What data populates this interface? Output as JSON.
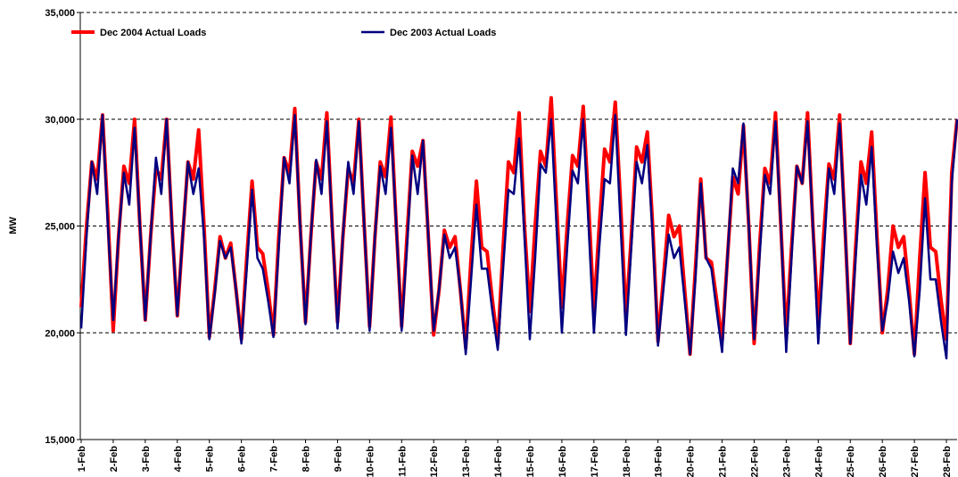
{
  "chart_data": {
    "type": "line",
    "y_label": "MW",
    "xlim": [
      0,
      656
    ],
    "ylim": [
      15000,
      35000
    ],
    "yticks": [
      {
        "value": 15000,
        "label": "15,000"
      },
      {
        "value": 20000,
        "label": "20,000"
      },
      {
        "value": 25000,
        "label": "25,000"
      },
      {
        "value": 30000,
        "label": "30,000"
      },
      {
        "value": 35000,
        "label": "35,000"
      }
    ],
    "xticks": [
      {
        "value": 0,
        "label": "1-Feb"
      },
      {
        "value": 24,
        "label": "2-Feb"
      },
      {
        "value": 48,
        "label": "3-Feb"
      },
      {
        "value": 72,
        "label": "4-Feb"
      },
      {
        "value": 96,
        "label": "5-Feb"
      },
      {
        "value": 120,
        "label": "6-Feb"
      },
      {
        "value": 144,
        "label": "7-Feb"
      },
      {
        "value": 168,
        "label": "8-Feb"
      },
      {
        "value": 192,
        "label": "9-Feb"
      },
      {
        "value": 216,
        "label": "10-Feb"
      },
      {
        "value": 240,
        "label": "11-Feb"
      },
      {
        "value": 264,
        "label": "12-Feb"
      },
      {
        "value": 288,
        "label": "13-Feb"
      },
      {
        "value": 312,
        "label": "14-Feb"
      },
      {
        "value": 336,
        "label": "15-Feb"
      },
      {
        "value": 360,
        "label": "16-Feb"
      },
      {
        "value": 384,
        "label": "17-Feb"
      },
      {
        "value": 408,
        "label": "18-Feb"
      },
      {
        "value": 432,
        "label": "19-Feb"
      },
      {
        "value": 456,
        "label": "20-Feb"
      },
      {
        "value": 480,
        "label": "21-Feb"
      },
      {
        "value": 504,
        "label": "22-Feb"
      },
      {
        "value": 528,
        "label": "23-Feb"
      },
      {
        "value": 552,
        "label": "24-Feb"
      },
      {
        "value": 576,
        "label": "25-Feb"
      },
      {
        "value": 600,
        "label": "26-Feb"
      },
      {
        "value": 624,
        "label": "27-Feb"
      },
      {
        "value": 648,
        "label": "28-Feb"
      }
    ],
    "grid": true,
    "x": [
      0,
      4,
      8,
      12,
      16,
      20,
      24,
      28,
      32,
      36,
      40,
      44,
      48,
      52,
      56,
      60,
      64,
      68,
      72,
      76,
      80,
      84,
      88,
      92,
      96,
      100,
      104,
      108,
      112,
      116,
      120,
      124,
      128,
      132,
      136,
      140,
      144,
      148,
      152,
      156,
      160,
      164,
      168,
      172,
      176,
      180,
      184,
      188,
      192,
      196,
      200,
      204,
      208,
      212,
      216,
      220,
      224,
      228,
      232,
      236,
      240,
      244,
      248,
      252,
      256,
      260,
      264,
      268,
      272,
      276,
      280,
      284,
      288,
      292,
      296,
      300,
      304,
      308,
      312,
      316,
      320,
      324,
      328,
      332,
      336,
      340,
      344,
      348,
      352,
      356,
      360,
      364,
      368,
      372,
      376,
      380,
      384,
      388,
      392,
      396,
      400,
      404,
      408,
      412,
      416,
      420,
      424,
      428,
      432,
      436,
      440,
      444,
      448,
      452,
      456,
      460,
      464,
      468,
      472,
      476,
      480,
      484,
      488,
      492,
      496,
      500,
      504,
      508,
      512,
      516,
      520,
      524,
      528,
      532,
      536,
      540,
      544,
      548,
      552,
      556,
      560,
      564,
      568,
      572,
      576,
      580,
      584,
      588,
      592,
      596,
      600,
      604,
      608,
      612,
      616,
      620,
      624,
      628,
      632,
      636,
      640,
      644,
      648,
      652,
      656
    ],
    "series": [
      {
        "name": "Dec 2004 Actual Loads",
        "color": "#ff0000",
        "values": [
          21200,
          25000,
          28000,
          27200,
          30200,
          25500,
          20100,
          24500,
          27800,
          27000,
          30000,
          25000,
          20600,
          24500,
          27700,
          27200,
          30000,
          25000,
          20800,
          24500,
          28000,
          27200,
          29500,
          25000,
          19800,
          22000,
          24500,
          23500,
          24200,
          22000,
          19700,
          23500,
          27100,
          24000,
          23700,
          22000,
          19900,
          24500,
          28200,
          27500,
          30500,
          25000,
          20500,
          24500,
          28000,
          27200,
          30300,
          25000,
          20500,
          24500,
          27700,
          27000,
          30000,
          25000,
          20300,
          24500,
          28000,
          27300,
          30100,
          25000,
          20300,
          24500,
          28500,
          27800,
          29000,
          24500,
          19900,
          22000,
          24800,
          24000,
          24500,
          22000,
          19300,
          23500,
          27100,
          24000,
          23800,
          21500,
          19500,
          24000,
          28000,
          27500,
          30300,
          25000,
          21000,
          25000,
          28500,
          27800,
          31000,
          26000,
          21200,
          25000,
          28300,
          27800,
          30600,
          26000,
          21000,
          25000,
          28600,
          28000,
          30800,
          26000,
          20700,
          24500,
          28700,
          28000,
          29400,
          25000,
          19600,
          22500,
          25500,
          24500,
          25000,
          22000,
          19000,
          23000,
          27200,
          23500,
          23300,
          21500,
          19600,
          23500,
          27300,
          26500,
          29700,
          25000,
          19500,
          24000,
          27700,
          27000,
          30300,
          25000,
          19800,
          24000,
          27800,
          27000,
          30300,
          25000,
          20500,
          24500,
          27900,
          27200,
          30200,
          25000,
          19500,
          24000,
          28000,
          27000,
          29400,
          24500,
          20000,
          22000,
          25000,
          24000,
          24500,
          22000,
          19000,
          23500,
          27500,
          24000,
          23800,
          21500,
          19700,
          27500,
          30000
        ]
      },
      {
        "name": "Dec 2003 Actual Loads",
        "color": "#000080",
        "values": [
          20200,
          24500,
          28000,
          26500,
          30200,
          25000,
          20600,
          24500,
          27500,
          26000,
          29600,
          25000,
          20600,
          24500,
          28200,
          26500,
          30000,
          25000,
          20800,
          24500,
          28000,
          26500,
          27700,
          24500,
          19700,
          21800,
          24300,
          23500,
          24000,
          22000,
          19500,
          23000,
          26700,
          23500,
          23000,
          21500,
          19800,
          24000,
          28200,
          27000,
          30200,
          25000,
          20400,
          24500,
          28100,
          26500,
          29900,
          25000,
          20200,
          24500,
          28000,
          26500,
          29900,
          25000,
          20100,
          24500,
          27800,
          26500,
          29600,
          25000,
          20100,
          24000,
          28300,
          26500,
          29000,
          24500,
          20100,
          22000,
          24600,
          23500,
          24000,
          22000,
          19000,
          22500,
          26000,
          23000,
          23000,
          21000,
          19200,
          23000,
          26700,
          26500,
          29100,
          24500,
          19700,
          23500,
          27900,
          27500,
          30000,
          25000,
          20000,
          24000,
          27600,
          27000,
          30000,
          25000,
          20000,
          24000,
          27200,
          27000,
          30200,
          25000,
          19900,
          24000,
          28000,
          27000,
          28800,
          24500,
          19400,
          22000,
          24600,
          23500,
          24000,
          21500,
          19000,
          22500,
          27000,
          23500,
          23000,
          21000,
          19100,
          23500,
          27700,
          27000,
          29800,
          25000,
          19700,
          23500,
          27400,
          26500,
          29900,
          25000,
          19100,
          23500,
          27800,
          27000,
          29900,
          25000,
          19500,
          23500,
          27700,
          26500,
          29800,
          25000,
          19500,
          23500,
          27400,
          26000,
          28700,
          24000,
          20100,
          21500,
          23800,
          22800,
          23500,
          21500,
          18900,
          22000,
          26300,
          22500,
          22500,
          20500,
          18800,
          27000,
          30000
        ]
      }
    ]
  }
}
